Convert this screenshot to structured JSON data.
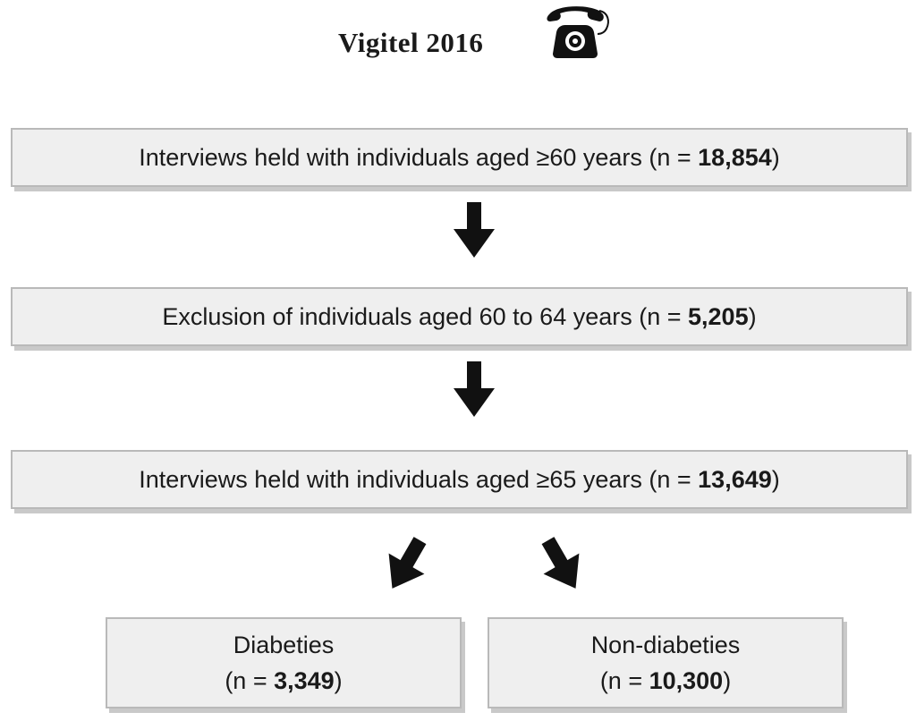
{
  "header": {
    "title": "Vigitel 2016",
    "icon": "telephone-icon"
  },
  "flow": {
    "step1": {
      "prefix": "Interviews held with individuals aged ≥60 years (n = ",
      "count": "18,854",
      "suffix": ")"
    },
    "step2": {
      "prefix": "Exclusion of individuals aged 60 to 64 years (n = ",
      "count": "5,205",
      "suffix": ")"
    },
    "step3": {
      "prefix": "Interviews held with individuals aged ≥65 years (n = ",
      "count": "13,649",
      "suffix": ")"
    },
    "group_diabetes": {
      "label": "Diabeties",
      "prefix": "(n = ",
      "count": "3,349",
      "suffix": ")"
    },
    "group_non_diabetes": {
      "label": "Non-diabeties",
      "prefix": "(n = ",
      "count": "10,300",
      "suffix": ")"
    }
  },
  "colors": {
    "box_fill": "#efefef",
    "box_border": "#b9b9b9",
    "box_shadow": "#c9c9c9",
    "arrow": "#111111",
    "text": "#1a1a1a"
  }
}
